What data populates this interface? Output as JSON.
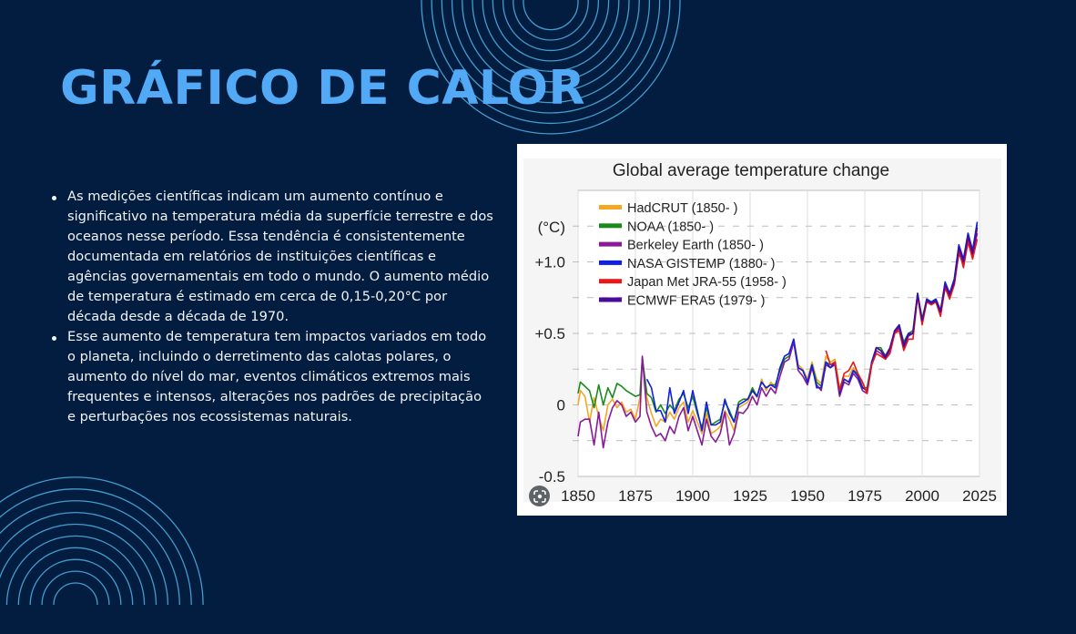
{
  "slide": {
    "title": "GRÁFICO DE CALOR",
    "colors": {
      "background": "#031d40",
      "title": "#52aaf6",
      "text": "#f2f4f8",
      "rings": "#4fb3e6"
    },
    "bullets": [
      "As medições científicas indicam um aumento contínuo e significativo na temperatura média da superfície terrestre e dos oceanos nesse período. Essa tendência é consistentemente documentada em relatórios de instituições científicas e agências governamentais em todo o mundo. O aumento médio de temperatura é estimado em cerca de 0,15-0,20°C por década desde a década de 1970.",
      "Esse aumento de temperatura tem impactos variados em todo o planeta, incluindo o derretimento das calotas polares, o aumento do nível do mar, eventos climáticos extremos mais frequentes e intensos, alterações nos padrões de precipitação e perturbações nos ecossistemas naturais."
    ],
    "lens_icon": "google-lens-icon"
  },
  "chart_data": {
    "type": "line",
    "title": "Global average temperature change",
    "xlabel": "",
    "ylabel": "(°C)",
    "xlim": [
      1850,
      2025
    ],
    "ylim": [
      -0.5,
      1.5
    ],
    "xticks": [
      "1850",
      "1875",
      "1900",
      "1925",
      "1950",
      "1975",
      "2000",
      "2025"
    ],
    "yticks": [
      {
        "value": 1.0,
        "label": "+1.0"
      },
      {
        "value": 0.5,
        "label": "+0.5"
      },
      {
        "value": 0,
        "label": "0"
      },
      {
        "value": -0.5,
        "label": "-0.5"
      }
    ],
    "grid": true,
    "legend_position": "top-left",
    "series": [
      {
        "name": "HadCRUT (1850- )",
        "color": "#f5a623",
        "x": [
          1850,
          1851,
          1853,
          1855,
          1857,
          1859,
          1861,
          1863,
          1865,
          1867,
          1869,
          1871,
          1873,
          1875,
          1877,
          1878,
          1880,
          1882,
          1884,
          1886,
          1888,
          1890,
          1892,
          1894,
          1896,
          1898,
          1900,
          1902,
          1904,
          1906,
          1908,
          1910,
          1912,
          1914,
          1916,
          1918,
          1920,
          1922,
          1924,
          1926,
          1928,
          1930,
          1932,
          1934,
          1936,
          1938,
          1940,
          1942,
          1944,
          1946,
          1948,
          1950,
          1952,
          1954,
          1956,
          1958,
          1960,
          1962,
          1964,
          1966,
          1968,
          1970,
          1972,
          1974,
          1976,
          1978,
          1980,
          1982,
          1984,
          1986,
          1988,
          1990,
          1992,
          1994,
          1996,
          1998,
          2000,
          2002,
          2004,
          2006,
          2008,
          2010,
          2012,
          2014,
          2016,
          2018,
          2020,
          2022,
          2024
        ],
        "y": [
          0.0,
          0.1,
          0.06,
          -0.12,
          0.05,
          -0.08,
          -0.18,
          0.0,
          0.04,
          -0.02,
          0.02,
          -0.05,
          -0.03,
          -0.1,
          0.05,
          0.32,
          0.05,
          -0.06,
          -0.15,
          -0.1,
          -0.12,
          -0.05,
          -0.1,
          -0.02,
          0.02,
          -0.12,
          -0.04,
          -0.12,
          -0.2,
          -0.06,
          -0.2,
          -0.18,
          -0.15,
          -0.04,
          -0.1,
          -0.18,
          -0.02,
          0.0,
          0.02,
          0.1,
          0.05,
          0.18,
          0.1,
          0.16,
          0.12,
          0.26,
          0.34,
          0.36,
          0.46,
          0.28,
          0.25,
          0.18,
          0.3,
          0.18,
          0.15,
          0.34,
          0.3,
          0.32,
          0.12,
          0.2,
          0.2,
          0.26,
          0.2,
          0.14,
          0.1,
          0.3,
          0.4,
          0.38,
          0.35,
          0.4,
          0.52,
          0.56,
          0.42,
          0.5,
          0.52,
          0.78,
          0.6,
          0.74,
          0.72,
          0.74,
          0.66,
          0.84,
          0.78,
          0.86,
          1.08,
          1.0,
          1.18,
          1.05,
          1.22
        ]
      },
      {
        "name": "NOAA (1850- )",
        "color": "#1a8a1a",
        "x": [
          1850,
          1851,
          1853,
          1855,
          1857,
          1859,
          1861,
          1863,
          1865,
          1867,
          1869,
          1871,
          1873,
          1875,
          1877,
          1878,
          1880,
          1882,
          1884,
          1886,
          1888,
          1890,
          1892,
          1894,
          1896,
          1898,
          1900,
          1902,
          1904,
          1906,
          1908,
          1910,
          1912,
          1914,
          1916,
          1918,
          1920,
          1922,
          1924,
          1926,
          1928,
          1930,
          1932,
          1934,
          1936,
          1938,
          1940,
          1942,
          1944,
          1946,
          1948,
          1950,
          1952,
          1954,
          1956,
          1958,
          1960,
          1962,
          1964,
          1966,
          1968,
          1970,
          1972,
          1974,
          1976,
          1978,
          1980,
          1982,
          1984,
          1986,
          1988,
          1990,
          1992,
          1994,
          1996,
          1998,
          2000,
          2002,
          2004,
          2006,
          2008,
          2010,
          2012,
          2014,
          2016,
          2018,
          2020,
          2022,
          2024
        ],
        "y": [
          0.08,
          0.16,
          0.13,
          0.1,
          -0.02,
          0.14,
          0.0,
          0.12,
          0.05,
          0.15,
          0.13,
          0.1,
          0.08,
          0.06,
          0.07,
          0.33,
          0.08,
          0.05,
          -0.05,
          0.0,
          -0.06,
          0.0,
          -0.04,
          0.04,
          0.08,
          -0.02,
          0.06,
          -0.06,
          -0.16,
          -0.02,
          -0.14,
          -0.12,
          -0.1,
          0.02,
          -0.04,
          -0.12,
          0.02,
          0.04,
          0.04,
          0.12,
          0.06,
          0.16,
          0.12,
          0.14,
          0.14,
          0.24,
          0.32,
          0.34,
          0.44,
          0.26,
          0.24,
          0.16,
          0.28,
          0.16,
          0.13,
          0.3,
          0.28,
          0.3,
          0.1,
          0.18,
          0.16,
          0.24,
          0.22,
          0.12,
          0.12,
          0.3,
          0.4,
          0.4,
          0.34,
          0.4,
          0.5,
          0.56,
          0.44,
          0.5,
          0.52,
          0.78,
          0.6,
          0.74,
          0.72,
          0.74,
          0.66,
          0.84,
          0.78,
          0.88,
          1.1,
          1.02,
          1.2,
          1.08,
          1.26
        ]
      },
      {
        "name": "Berkeley Earth (1850- )",
        "color": "#8a1a9a",
        "x": [
          1850,
          1851,
          1853,
          1855,
          1857,
          1859,
          1861,
          1863,
          1865,
          1867,
          1869,
          1871,
          1873,
          1875,
          1877,
          1878,
          1880,
          1882,
          1884,
          1886,
          1888,
          1890,
          1892,
          1894,
          1896,
          1898,
          1900,
          1902,
          1904,
          1906,
          1908,
          1910,
          1912,
          1914,
          1916,
          1918,
          1920,
          1922,
          1924,
          1926,
          1928,
          1930,
          1932,
          1934,
          1936,
          1938,
          1940,
          1942,
          1944,
          1946,
          1948,
          1950,
          1952,
          1954,
          1956,
          1958,
          1960,
          1962,
          1964,
          1966,
          1968,
          1970,
          1972,
          1974,
          1976,
          1978,
          1980,
          1982,
          1984,
          1986,
          1988,
          1990,
          1992,
          1994,
          1996,
          1998,
          2000,
          2002,
          2004,
          2006,
          2008,
          2010,
          2012,
          2014,
          2016,
          2018,
          2020,
          2022,
          2024
        ],
        "y": [
          -0.22,
          -0.12,
          -0.1,
          -0.1,
          -0.28,
          -0.05,
          -0.3,
          -0.12,
          -0.02,
          0.03,
          0.0,
          -0.08,
          -0.05,
          -0.12,
          -0.08,
          0.34,
          -0.05,
          -0.15,
          -0.22,
          -0.2,
          -0.25,
          -0.15,
          -0.2,
          -0.08,
          -0.02,
          -0.18,
          -0.08,
          -0.18,
          -0.28,
          -0.1,
          -0.22,
          -0.26,
          -0.2,
          -0.05,
          -0.28,
          -0.2,
          -0.05,
          -0.06,
          -0.02,
          0.06,
          0.0,
          0.12,
          0.06,
          0.12,
          0.08,
          0.2,
          0.3,
          0.32,
          0.44,
          0.24,
          0.2,
          0.14,
          0.26,
          0.14,
          0.1,
          0.28,
          0.26,
          0.28,
          0.06,
          0.16,
          0.14,
          0.22,
          0.18,
          0.1,
          0.08,
          0.28,
          0.38,
          0.36,
          0.32,
          0.38,
          0.5,
          0.54,
          0.4,
          0.48,
          0.5,
          0.76,
          0.58,
          0.72,
          0.7,
          0.72,
          0.64,
          0.82,
          0.76,
          0.84,
          1.06,
          0.98,
          1.16,
          1.04,
          1.2
        ]
      },
      {
        "name": "NASA GISTEMP (1880- )",
        "color": "#1020e0",
        "x": [
          1880,
          1882,
          1884,
          1886,
          1888,
          1890,
          1892,
          1894,
          1896,
          1898,
          1900,
          1902,
          1904,
          1906,
          1908,
          1910,
          1912,
          1914,
          1916,
          1918,
          1920,
          1922,
          1924,
          1926,
          1928,
          1930,
          1932,
          1934,
          1936,
          1938,
          1940,
          1942,
          1944,
          1946,
          1948,
          1950,
          1952,
          1954,
          1956,
          1958,
          1960,
          1962,
          1964,
          1966,
          1968,
          1970,
          1972,
          1974,
          1976,
          1978,
          1980,
          1982,
          1984,
          1986,
          1988,
          1990,
          1992,
          1994,
          1996,
          1998,
          2000,
          2002,
          2004,
          2006,
          2008,
          2010,
          2012,
          2014,
          2016,
          2018,
          2020,
          2022,
          2024
        ],
        "y": [
          0.18,
          0.12,
          -0.04,
          -0.04,
          -0.12,
          0.12,
          -0.06,
          0.02,
          0.1,
          -0.06,
          0.1,
          -0.04,
          -0.18,
          0.02,
          -0.14,
          -0.14,
          -0.12,
          0.04,
          -0.06,
          -0.12,
          0.0,
          0.02,
          0.04,
          0.1,
          0.06,
          0.16,
          0.12,
          0.14,
          0.12,
          0.26,
          0.34,
          0.36,
          0.46,
          0.26,
          0.24,
          0.16,
          0.28,
          0.12,
          0.12,
          0.3,
          0.26,
          0.3,
          0.08,
          0.18,
          0.16,
          0.24,
          0.2,
          0.12,
          0.1,
          0.3,
          0.4,
          0.38,
          0.34,
          0.4,
          0.52,
          0.56,
          0.42,
          0.5,
          0.5,
          0.78,
          0.58,
          0.74,
          0.72,
          0.74,
          0.66,
          0.86,
          0.78,
          0.88,
          1.12,
          1.02,
          1.2,
          1.08,
          1.28
        ]
      },
      {
        "name": "Japan Met JRA-55 (1958- )",
        "color": "#e81818",
        "x": [
          1958,
          1960,
          1962,
          1964,
          1966,
          1968,
          1970,
          1972,
          1974,
          1976,
          1978,
          1980,
          1982,
          1984,
          1986,
          1988,
          1990,
          1992,
          1994,
          1996,
          1998,
          2000,
          2002,
          2004,
          2006,
          2008,
          2010,
          2012,
          2014,
          2016,
          2018,
          2020,
          2022,
          2024
        ],
        "y": [
          0.38,
          0.28,
          0.3,
          0.1,
          0.22,
          0.24,
          0.3,
          0.22,
          0.16,
          0.08,
          0.28,
          0.36,
          0.34,
          0.32,
          0.36,
          0.5,
          0.52,
          0.38,
          0.46,
          0.46,
          0.76,
          0.56,
          0.72,
          0.7,
          0.72,
          0.62,
          0.82,
          0.74,
          0.84,
          1.08,
          0.96,
          1.14,
          1.02,
          1.16
        ]
      },
      {
        "name": "ECMWF ERA5 (1979- )",
        "color": "#4a0a9a",
        "x": [
          1979,
          1980,
          1982,
          1984,
          1986,
          1988,
          1990,
          1992,
          1994,
          1996,
          1998,
          2000,
          2002,
          2004,
          2006,
          2008,
          2010,
          2012,
          2014,
          2016,
          2018,
          2020,
          2022,
          2024
        ],
        "y": [
          0.34,
          0.4,
          0.38,
          0.33,
          0.4,
          0.52,
          0.55,
          0.41,
          0.49,
          0.5,
          0.77,
          0.59,
          0.73,
          0.71,
          0.73,
          0.65,
          0.84,
          0.77,
          0.86,
          1.1,
          1.0,
          1.18,
          1.06,
          1.24
        ]
      }
    ]
  }
}
